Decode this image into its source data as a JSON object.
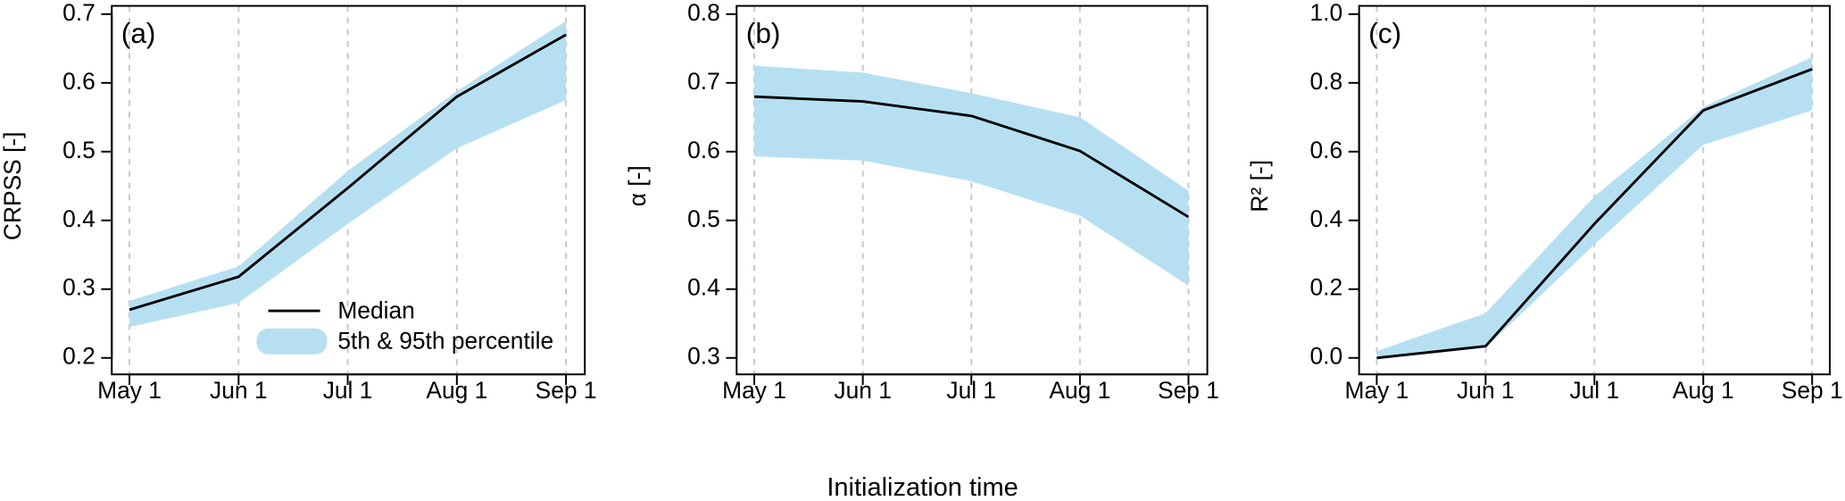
{
  "xlabel": "Initialization time",
  "chart_data": [
    {
      "type": "line",
      "panel_label": "(a)",
      "ylabel": "CRPSS [-]",
      "categories": [
        "May 1",
        "Jun 1",
        "Jul 1",
        "Aug 1",
        "Sep 1"
      ],
      "ylim": [
        0.2,
        0.7
      ],
      "yticks": [
        0.2,
        0.3,
        0.4,
        0.5,
        0.6,
        0.7
      ],
      "grid": true,
      "series": [
        {
          "name": "Median",
          "color": "#000000",
          "values": [
            0.27,
            0.318,
            0.447,
            0.58,
            0.67
          ]
        },
        {
          "name": "5th & 95th percentile",
          "color": "#b6e0f2",
          "lower": [
            0.245,
            0.28,
            0.395,
            0.505,
            0.575
          ],
          "upper": [
            0.283,
            0.333,
            0.472,
            0.588,
            0.69
          ]
        }
      ]
    },
    {
      "type": "line",
      "panel_label": "(b)",
      "ylabel": "α [-]",
      "categories": [
        "May 1",
        "Jun 1",
        "Jul 1",
        "Aug 1",
        "Sep 1"
      ],
      "ylim": [
        0.3,
        0.8
      ],
      "yticks": [
        0.3,
        0.4,
        0.5,
        0.6,
        0.7,
        0.8
      ],
      "grid": true,
      "series": [
        {
          "color": "#000000",
          "values": [
            0.68,
            0.673,
            0.652,
            0.601,
            0.505
          ]
        },
        {
          "color": "#b6e0f2",
          "lower": [
            0.593,
            0.587,
            0.557,
            0.507,
            0.405
          ],
          "upper": [
            0.725,
            0.715,
            0.685,
            0.65,
            0.543
          ]
        }
      ]
    },
    {
      "type": "line",
      "panel_label": "(c)",
      "ylabel": "R² [-]",
      "categories": [
        "May 1",
        "Jun 1",
        "Jul 1",
        "Aug 1",
        "Sep 1"
      ],
      "ylim": [
        0,
        1
      ],
      "yticks": [
        {
          "value": 0,
          "label": "0.0"
        },
        0.2,
        0.4,
        0.6,
        0.8,
        {
          "value": 1,
          "label": "1.0"
        }
      ],
      "grid": true,
      "series": [
        {
          "color": "#000000",
          "values": [
            0.0,
            0.034,
            0.39,
            0.72,
            0.84
          ]
        },
        {
          "color": "#b6e0f2",
          "lower": [
            0.0,
            0.03,
            0.33,
            0.62,
            0.72
          ],
          "upper": [
            0.02,
            0.13,
            0.47,
            0.73,
            0.875
          ]
        }
      ]
    }
  ]
}
